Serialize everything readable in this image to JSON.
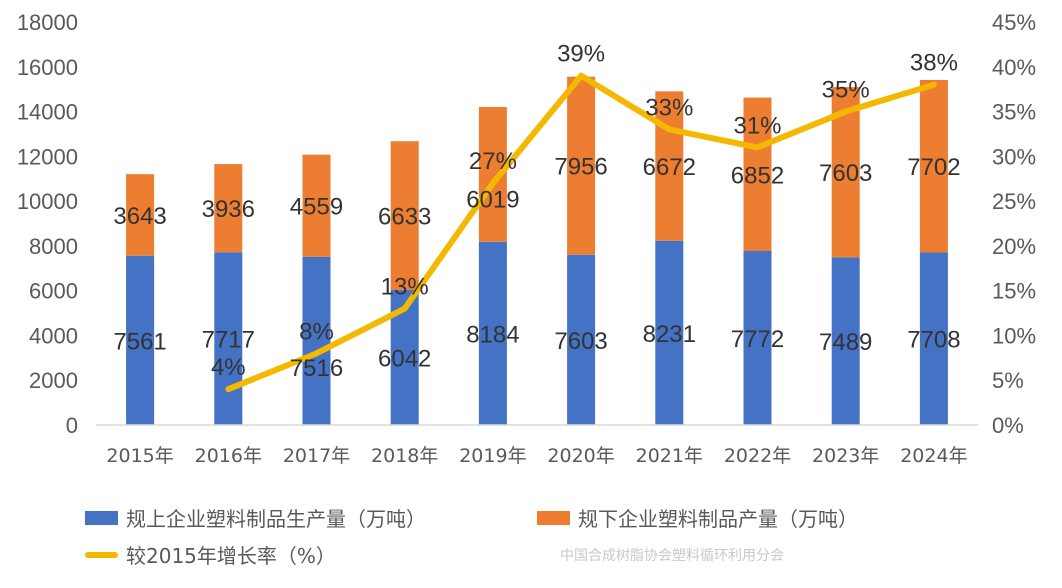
{
  "chart_data": {
    "type": "bar",
    "stacked": true,
    "title": "",
    "categories": [
      "2015年",
      "2016年",
      "2017年",
      "2018年",
      "2019年",
      "2020年",
      "2021年",
      "2022年",
      "2023年",
      "2024年"
    ],
    "series": [
      {
        "name": "规上企业塑料制品生产量（万吨）",
        "type": "bar",
        "axis": "left",
        "color": "#4472C4",
        "values": [
          7561,
          7717,
          7516,
          6042,
          8184,
          7603,
          8231,
          7772,
          7489,
          7708
        ]
      },
      {
        "name": "规下企业塑料制品产量（万吨）",
        "type": "bar",
        "axis": "left",
        "color": "#ED7D31",
        "values": [
          3643,
          3936,
          4559,
          6633,
          6019,
          7956,
          6672,
          6852,
          7603,
          7702
        ]
      },
      {
        "name": "较2015年增长率（%）",
        "type": "line",
        "axis": "right",
        "color": "#F5B800",
        "values": [
          null,
          4,
          8,
          13,
          27,
          39,
          33,
          31,
          35,
          38
        ],
        "labels": [
          "",
          "4%",
          "8%",
          "13%",
          "27%",
          "39%",
          "33%",
          "31%",
          "35%",
          "38%"
        ]
      }
    ],
    "y_left": {
      "min": 0,
      "max": 18000,
      "step": 2000,
      "ticks": [
        "0",
        "2000",
        "4000",
        "6000",
        "8000",
        "10000",
        "12000",
        "14000",
        "16000",
        "18000"
      ]
    },
    "y_right": {
      "min": 0,
      "max": 45,
      "step": 5,
      "ticks": [
        "0%",
        "5%",
        "10%",
        "15%",
        "20%",
        "25%",
        "30%",
        "35%",
        "40%",
        "45%"
      ]
    },
    "grid": false,
    "legend_position": "bottom",
    "watermark": "中国合成树脂协会塑料循环利用分会"
  }
}
